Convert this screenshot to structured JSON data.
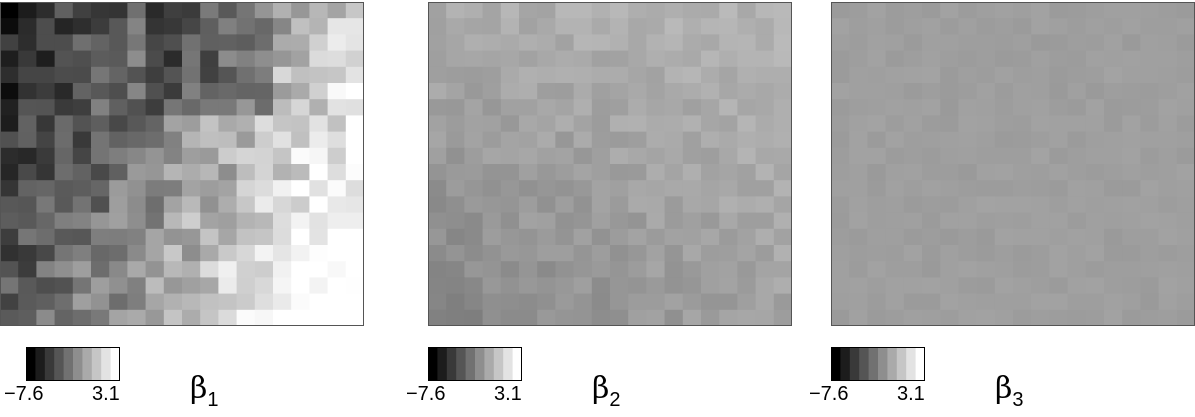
{
  "chart_data": {
    "type": "heatmap",
    "grid": {
      "rows": 20,
      "cols": 20
    },
    "colormap": "grayscale (black = low, white = high)",
    "colorbar": {
      "min": -7.6,
      "max": 3.1,
      "min_label": "−7.6",
      "max_label": "3.1",
      "levels": 10
    },
    "panels": [
      {
        "name": "β",
        "subscript": "1",
        "value_range_estimate": [
          -7.6,
          3.1
        ],
        "description": "dark (low) values on the left and top, bright (high) values toward the lower right"
      },
      {
        "name": "β",
        "subscript": "2",
        "value_range_estimate": [
          -3.0,
          0.5
        ],
        "description": "mostly light gray, nearly uniform with mild variation"
      },
      {
        "name": "β",
        "subscript": "3",
        "value_range_estimate": [
          -1.3,
          -0.6
        ],
        "description": "almost constant light gray"
      }
    ]
  }
}
